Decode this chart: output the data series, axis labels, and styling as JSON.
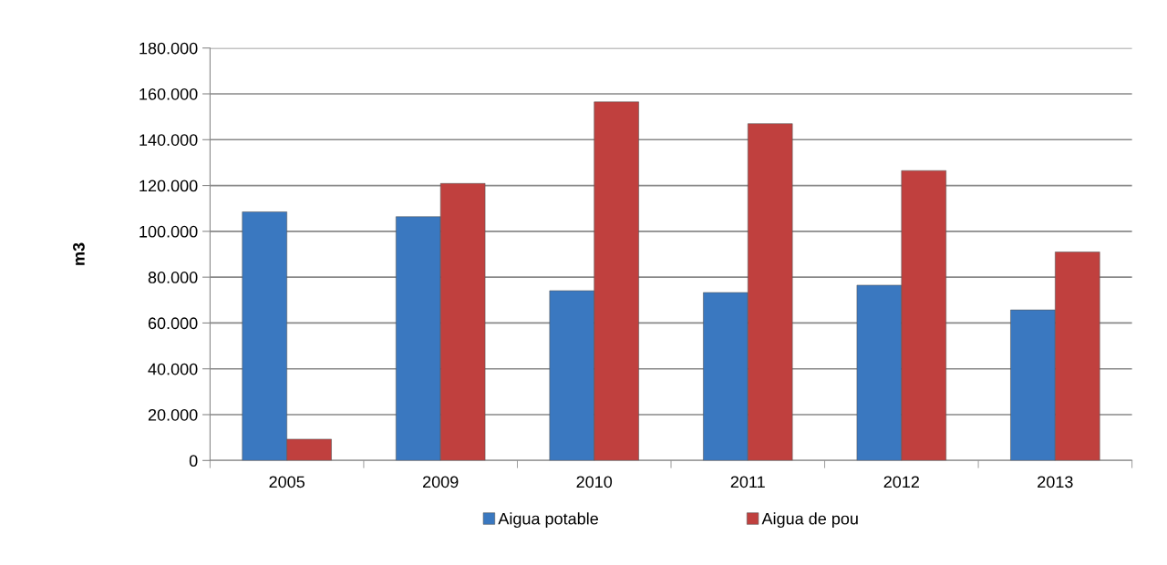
{
  "chart_data": {
    "type": "bar",
    "ylabel": "m3",
    "categories": [
      "2005",
      "2009",
      "2010",
      "2011",
      "2012",
      "2013"
    ],
    "series": [
      {
        "name": "Aigua potable",
        "color": "#3a78c0",
        "values": [
          108500,
          106400,
          74100,
          73300,
          76500,
          65700
        ]
      },
      {
        "name": "Aigua de pou",
        "color": "#c0403e",
        "values": [
          9300,
          120900,
          156500,
          147000,
          126500,
          91000
        ]
      }
    ],
    "ylim": [
      0,
      180000
    ],
    "yticks": [
      0,
      {
        "value": 20000,
        "label": "20.000"
      },
      {
        "value": 40000,
        "label": "40.000"
      },
      {
        "value": 60000,
        "label": "60.000"
      },
      {
        "value": 80000,
        "label": "80.000"
      },
      {
        "value": 100000,
        "label": "100.000"
      },
      {
        "value": 120000,
        "label": "120.000"
      },
      {
        "value": 140000,
        "label": "140.000"
      },
      {
        "value": 160000,
        "label": "160.000"
      },
      {
        "value": 180000,
        "label": "180.000"
      }
    ],
    "grid": "y",
    "legend": "bottom"
  }
}
